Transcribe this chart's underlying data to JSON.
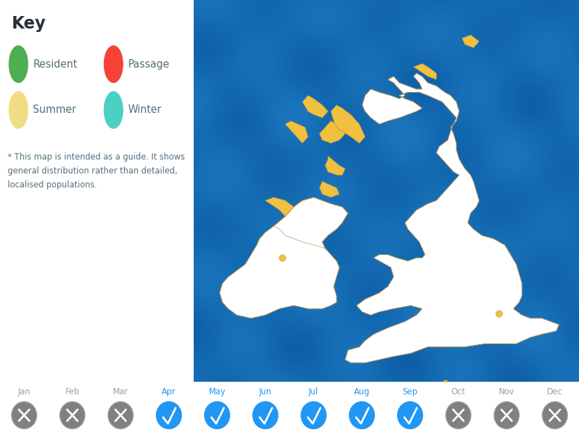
{
  "title": "Key",
  "legend_items": [
    {
      "label": "Resident",
      "color": "#4caf50"
    },
    {
      "label": "Passage",
      "color": "#f44336"
    },
    {
      "label": "Summer",
      "color": "#f0dc82"
    },
    {
      "label": "Winter",
      "color": "#4dd0c4"
    }
  ],
  "note": "* This map is intended as a guide. It shows\ngeneral distribution rather than detailed,\nlocalised populations.",
  "months": [
    "Jan",
    "Feb",
    "Mar",
    "Apr",
    "May",
    "Jun",
    "Jul",
    "Aug",
    "Sep",
    "Oct",
    "Nov",
    "Dec"
  ],
  "active_months": [
    3,
    4,
    5,
    6,
    7,
    8
  ],
  "active_color": "#2196f3",
  "inactive_color": "#9e9e9e",
  "key_title_color": "#263238",
  "legend_text_color": "#546e7a",
  "note_color": "#546e7a",
  "bg_color": "#ffffff",
  "map_ocean_base": [
    0.08,
    0.42,
    0.7
  ],
  "land_color": "#ffffff",
  "summer_fill_color": "#f0c040",
  "land_border_color": "#b89050",
  "dot_color": "#f0c040",
  "xlim": [
    -11.0,
    2.5
  ],
  "ylim": [
    49.5,
    61.5
  ],
  "great_britain": [
    [
      1.8,
      51.3
    ],
    [
      1.7,
      51.1
    ],
    [
      1.2,
      51.0
    ],
    [
      0.8,
      50.9
    ],
    [
      0.3,
      50.7
    ],
    [
      -0.2,
      50.7
    ],
    [
      -0.8,
      50.7
    ],
    [
      -1.5,
      50.6
    ],
    [
      -2.1,
      50.6
    ],
    [
      -2.8,
      50.6
    ],
    [
      -3.4,
      50.4
    ],
    [
      -4.0,
      50.3
    ],
    [
      -4.5,
      50.2
    ],
    [
      -5.0,
      50.1
    ],
    [
      -5.5,
      50.1
    ],
    [
      -5.7,
      50.2
    ],
    [
      -5.6,
      50.5
    ],
    [
      -5.2,
      50.6
    ],
    [
      -5.0,
      50.8
    ],
    [
      -4.7,
      51.0
    ],
    [
      -4.2,
      51.2
    ],
    [
      -3.6,
      51.4
    ],
    [
      -3.2,
      51.6
    ],
    [
      -3.0,
      51.8
    ],
    [
      -3.4,
      51.9
    ],
    [
      -4.0,
      51.8
    ],
    [
      -4.5,
      51.7
    ],
    [
      -4.8,
      51.6
    ],
    [
      -5.1,
      51.7
    ],
    [
      -5.3,
      51.9
    ],
    [
      -5.0,
      52.1
    ],
    [
      -4.5,
      52.3
    ],
    [
      -4.2,
      52.5
    ],
    [
      -4.0,
      52.8
    ],
    [
      -4.1,
      53.1
    ],
    [
      -4.5,
      53.3
    ],
    [
      -4.7,
      53.4
    ],
    [
      -4.5,
      53.5
    ],
    [
      -4.2,
      53.5
    ],
    [
      -3.9,
      53.4
    ],
    [
      -3.5,
      53.3
    ],
    [
      -3.2,
      53.4
    ],
    [
      -3.0,
      53.4
    ],
    [
      -2.9,
      53.5
    ],
    [
      -3.0,
      53.7
    ],
    [
      -3.1,
      53.9
    ],
    [
      -3.3,
      54.1
    ],
    [
      -3.5,
      54.3
    ],
    [
      -3.6,
      54.5
    ],
    [
      -3.4,
      54.7
    ],
    [
      -3.2,
      54.9
    ],
    [
      -3.0,
      55.0
    ],
    [
      -2.8,
      55.1
    ],
    [
      -2.5,
      55.2
    ],
    [
      -2.2,
      55.5
    ],
    [
      -2.0,
      55.7
    ],
    [
      -1.8,
      55.9
    ],
    [
      -1.7,
      56.0
    ],
    [
      -1.9,
      56.1
    ],
    [
      -2.1,
      56.3
    ],
    [
      -2.3,
      56.5
    ],
    [
      -2.5,
      56.7
    ],
    [
      -2.4,
      56.9
    ],
    [
      -2.1,
      57.1
    ],
    [
      -2.0,
      57.4
    ],
    [
      -1.9,
      57.6
    ],
    [
      -1.8,
      57.8
    ],
    [
      -2.0,
      58.0
    ],
    [
      -2.3,
      58.3
    ],
    [
      -2.8,
      58.5
    ],
    [
      -3.1,
      58.6
    ],
    [
      -3.5,
      58.6
    ],
    [
      -3.8,
      58.5
    ],
    [
      -3.6,
      58.4
    ],
    [
      -3.3,
      58.3
    ],
    [
      -3.0,
      58.1
    ],
    [
      -3.2,
      58.0
    ],
    [
      -3.5,
      57.9
    ],
    [
      -3.8,
      57.8
    ],
    [
      -4.2,
      57.7
    ],
    [
      -4.5,
      57.6
    ],
    [
      -4.8,
      57.8
    ],
    [
      -5.0,
      58.0
    ],
    [
      -5.1,
      58.2
    ],
    [
      -5.0,
      58.5
    ],
    [
      -4.8,
      58.7
    ],
    [
      -4.5,
      58.6
    ],
    [
      -4.1,
      58.5
    ],
    [
      -3.8,
      58.4
    ],
    [
      -3.6,
      58.5
    ],
    [
      -3.8,
      58.7
    ],
    [
      -4.0,
      58.9
    ],
    [
      -4.2,
      59.0
    ],
    [
      -4.0,
      59.1
    ],
    [
      -3.8,
      58.9
    ],
    [
      -3.5,
      58.8
    ],
    [
      -3.2,
      58.7
    ],
    [
      -3.0,
      58.7
    ],
    [
      -3.1,
      58.9
    ],
    [
      -3.3,
      59.1
    ],
    [
      -3.2,
      59.2
    ],
    [
      -3.0,
      59.1
    ],
    [
      -2.8,
      58.9
    ],
    [
      -2.5,
      58.8
    ],
    [
      -2.2,
      58.6
    ],
    [
      -2.0,
      58.5
    ],
    [
      -1.8,
      58.3
    ],
    [
      -1.7,
      58.0
    ],
    [
      -1.8,
      57.7
    ],
    [
      -2.0,
      57.5
    ],
    [
      -1.9,
      57.3
    ],
    [
      -1.8,
      57.0
    ],
    [
      -1.8,
      56.8
    ],
    [
      -1.7,
      56.5
    ],
    [
      -1.5,
      56.2
    ],
    [
      -1.3,
      56.0
    ],
    [
      -1.2,
      55.8
    ],
    [
      -1.1,
      55.5
    ],
    [
      -1.0,
      55.2
    ],
    [
      -1.1,
      55.0
    ],
    [
      -1.3,
      54.8
    ],
    [
      -1.4,
      54.5
    ],
    [
      -1.2,
      54.3
    ],
    [
      -0.9,
      54.1
    ],
    [
      -0.5,
      54.0
    ],
    [
      -0.1,
      53.8
    ],
    [
      0.1,
      53.5
    ],
    [
      0.3,
      53.2
    ],
    [
      0.4,
      52.9
    ],
    [
      0.5,
      52.6
    ],
    [
      0.5,
      52.2
    ],
    [
      0.4,
      52.0
    ],
    [
      0.2,
      51.8
    ],
    [
      0.5,
      51.6
    ],
    [
      0.8,
      51.5
    ],
    [
      1.2,
      51.5
    ],
    [
      1.5,
      51.4
    ],
    [
      1.8,
      51.3
    ]
  ],
  "ireland": [
    [
      -6.0,
      52.0
    ],
    [
      -6.2,
      51.9
    ],
    [
      -6.5,
      51.8
    ],
    [
      -7.0,
      51.8
    ],
    [
      -7.5,
      51.9
    ],
    [
      -8.0,
      51.8
    ],
    [
      -8.5,
      51.6
    ],
    [
      -9.0,
      51.5
    ],
    [
      -9.5,
      51.6
    ],
    [
      -9.8,
      51.8
    ],
    [
      -10.0,
      52.0
    ],
    [
      -10.1,
      52.3
    ],
    [
      -10.0,
      52.6
    ],
    [
      -9.8,
      52.8
    ],
    [
      -9.5,
      53.0
    ],
    [
      -9.2,
      53.2
    ],
    [
      -9.0,
      53.5
    ],
    [
      -8.8,
      53.8
    ],
    [
      -8.7,
      54.0
    ],
    [
      -8.5,
      54.2
    ],
    [
      -8.2,
      54.4
    ],
    [
      -7.8,
      54.7
    ],
    [
      -7.5,
      55.0
    ],
    [
      -7.2,
      55.2
    ],
    [
      -6.8,
      55.3
    ],
    [
      -6.5,
      55.2
    ],
    [
      -6.2,
      55.1
    ],
    [
      -5.8,
      55.0
    ],
    [
      -5.6,
      54.8
    ],
    [
      -5.8,
      54.5
    ],
    [
      -6.0,
      54.3
    ],
    [
      -6.3,
      54.1
    ],
    [
      -6.5,
      53.9
    ],
    [
      -6.4,
      53.7
    ],
    [
      -6.2,
      53.5
    ],
    [
      -6.0,
      53.3
    ],
    [
      -5.9,
      53.1
    ],
    [
      -6.0,
      52.8
    ],
    [
      -6.1,
      52.5
    ],
    [
      -6.0,
      52.2
    ],
    [
      -6.0,
      52.0
    ]
  ],
  "northern_ireland": [
    [
      -7.5,
      55.0
    ],
    [
      -7.2,
      55.2
    ],
    [
      -6.8,
      55.3
    ],
    [
      -6.5,
      55.2
    ],
    [
      -6.2,
      55.1
    ],
    [
      -5.8,
      55.0
    ],
    [
      -5.6,
      54.8
    ],
    [
      -5.8,
      54.5
    ],
    [
      -6.0,
      54.3
    ],
    [
      -6.3,
      54.1
    ],
    [
      -6.5,
      53.9
    ],
    [
      -6.4,
      53.7
    ],
    [
      -6.8,
      53.8
    ],
    [
      -7.2,
      53.9
    ],
    [
      -7.5,
      54.0
    ],
    [
      -7.8,
      54.1
    ],
    [
      -8.0,
      54.3
    ],
    [
      -8.2,
      54.4
    ],
    [
      -7.8,
      54.7
    ],
    [
      -7.5,
      55.0
    ]
  ],
  "hebrides_outer": [
    [
      -7.6,
      57.7
    ],
    [
      -7.1,
      57.5
    ],
    [
      -7.0,
      57.2
    ],
    [
      -7.2,
      57.0
    ],
    [
      -7.4,
      57.2
    ],
    [
      -7.6,
      57.4
    ],
    [
      -7.8,
      57.6
    ],
    [
      -7.6,
      57.7
    ]
  ],
  "hebrides_outer2": [
    [
      -7.2,
      58.3
    ],
    [
      -7.0,
      58.0
    ],
    [
      -6.8,
      57.9
    ],
    [
      -6.5,
      57.8
    ],
    [
      -6.3,
      58.0
    ],
    [
      -6.5,
      58.2
    ],
    [
      -6.8,
      58.4
    ],
    [
      -7.0,
      58.5
    ],
    [
      -7.2,
      58.3
    ]
  ],
  "hebrides_skye": [
    [
      -6.2,
      57.7
    ],
    [
      -5.8,
      57.5
    ],
    [
      -5.7,
      57.3
    ],
    [
      -5.9,
      57.1
    ],
    [
      -6.2,
      57.0
    ],
    [
      -6.5,
      57.1
    ],
    [
      -6.6,
      57.3
    ],
    [
      -6.4,
      57.5
    ],
    [
      -6.2,
      57.7
    ]
  ],
  "islay": [
    [
      -6.5,
      55.8
    ],
    [
      -6.0,
      55.6
    ],
    [
      -5.9,
      55.4
    ],
    [
      -6.2,
      55.3
    ],
    [
      -6.5,
      55.4
    ],
    [
      -6.6,
      55.6
    ],
    [
      -6.5,
      55.8
    ]
  ],
  "mull": [
    [
      -6.3,
      56.6
    ],
    [
      -5.9,
      56.3
    ],
    [
      -5.7,
      56.2
    ],
    [
      -5.8,
      56.0
    ],
    [
      -6.0,
      56.0
    ],
    [
      -6.3,
      56.1
    ],
    [
      -6.4,
      56.3
    ],
    [
      -6.3,
      56.5
    ],
    [
      -6.3,
      56.6
    ]
  ],
  "orkney": [
    [
      -3.3,
      59.4
    ],
    [
      -2.8,
      59.1
    ],
    [
      -2.5,
      59.0
    ],
    [
      -2.5,
      59.2
    ],
    [
      -2.8,
      59.4
    ],
    [
      -3.0,
      59.5
    ],
    [
      -3.3,
      59.4
    ]
  ],
  "nw_donegal": [
    [
      -8.5,
      55.2
    ],
    [
      -8.0,
      54.9
    ],
    [
      -7.8,
      54.7
    ],
    [
      -7.5,
      55.0
    ],
    [
      -7.8,
      55.2
    ],
    [
      -8.2,
      55.3
    ],
    [
      -8.5,
      55.2
    ]
  ],
  "nw_scotland_summer": [
    [
      -6.0,
      57.5
    ],
    [
      -5.5,
      57.2
    ],
    [
      -5.2,
      57.0
    ],
    [
      -5.0,
      57.2
    ],
    [
      -5.2,
      57.6
    ],
    [
      -5.5,
      57.9
    ],
    [
      -5.8,
      58.1
    ],
    [
      -6.0,
      58.2
    ],
    [
      -6.2,
      58.0
    ],
    [
      -6.1,
      57.7
    ],
    [
      -6.0,
      57.5
    ]
  ],
  "channel_islands_lon": [
    -2.2
  ],
  "channel_islands_lat": [
    49.5
  ],
  "summer_dot_ireland": [
    -7.9,
    53.4
  ],
  "summer_dot_england": [
    -0.3,
    51.65
  ]
}
